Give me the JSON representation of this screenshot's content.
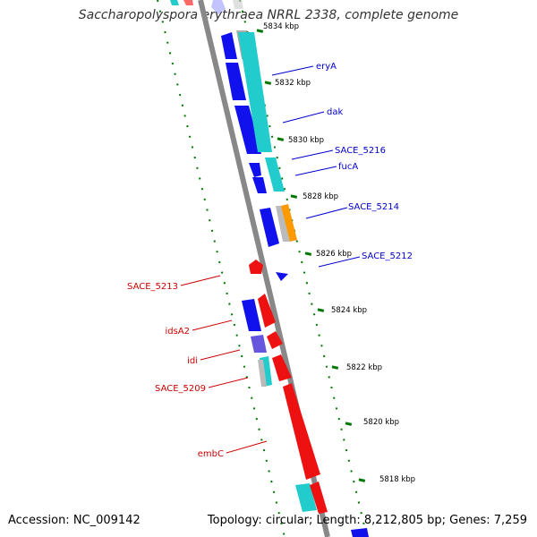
{
  "title": "Saccharopolyspora erythraea NRRL 2338, complete genome",
  "footer": {
    "accession": "Accession: NC_009142",
    "stats": "Topology: circular; Length: 8,212,805 bp; Genes: 7,259"
  },
  "colors": {
    "forward_gene": "#ee1111",
    "reverse_gene": "#1111ee",
    "forward_label": "#cc0000",
    "reverse_label": "#0000cc",
    "cds_cyan": "#22cccc",
    "rrna_orange": "#ff9900",
    "ticks": "#007700",
    "backbone": "#888888"
  },
  "kbp_ticks": [
    "5834 kbp",
    "5832 kbp",
    "5830 kbp",
    "5828 kbp",
    "5826 kbp",
    "5824 kbp",
    "5822 kbp",
    "5820 kbp",
    "5818 kbp"
  ],
  "reverse_genes": [
    "eryA",
    "dak",
    "SACE_5216",
    "fucA",
    "SACE_5214",
    "SACE_5212"
  ],
  "forward_genes": [
    "SACE_5213",
    "idsA2",
    "idi",
    "SACE_5209",
    "embC"
  ]
}
